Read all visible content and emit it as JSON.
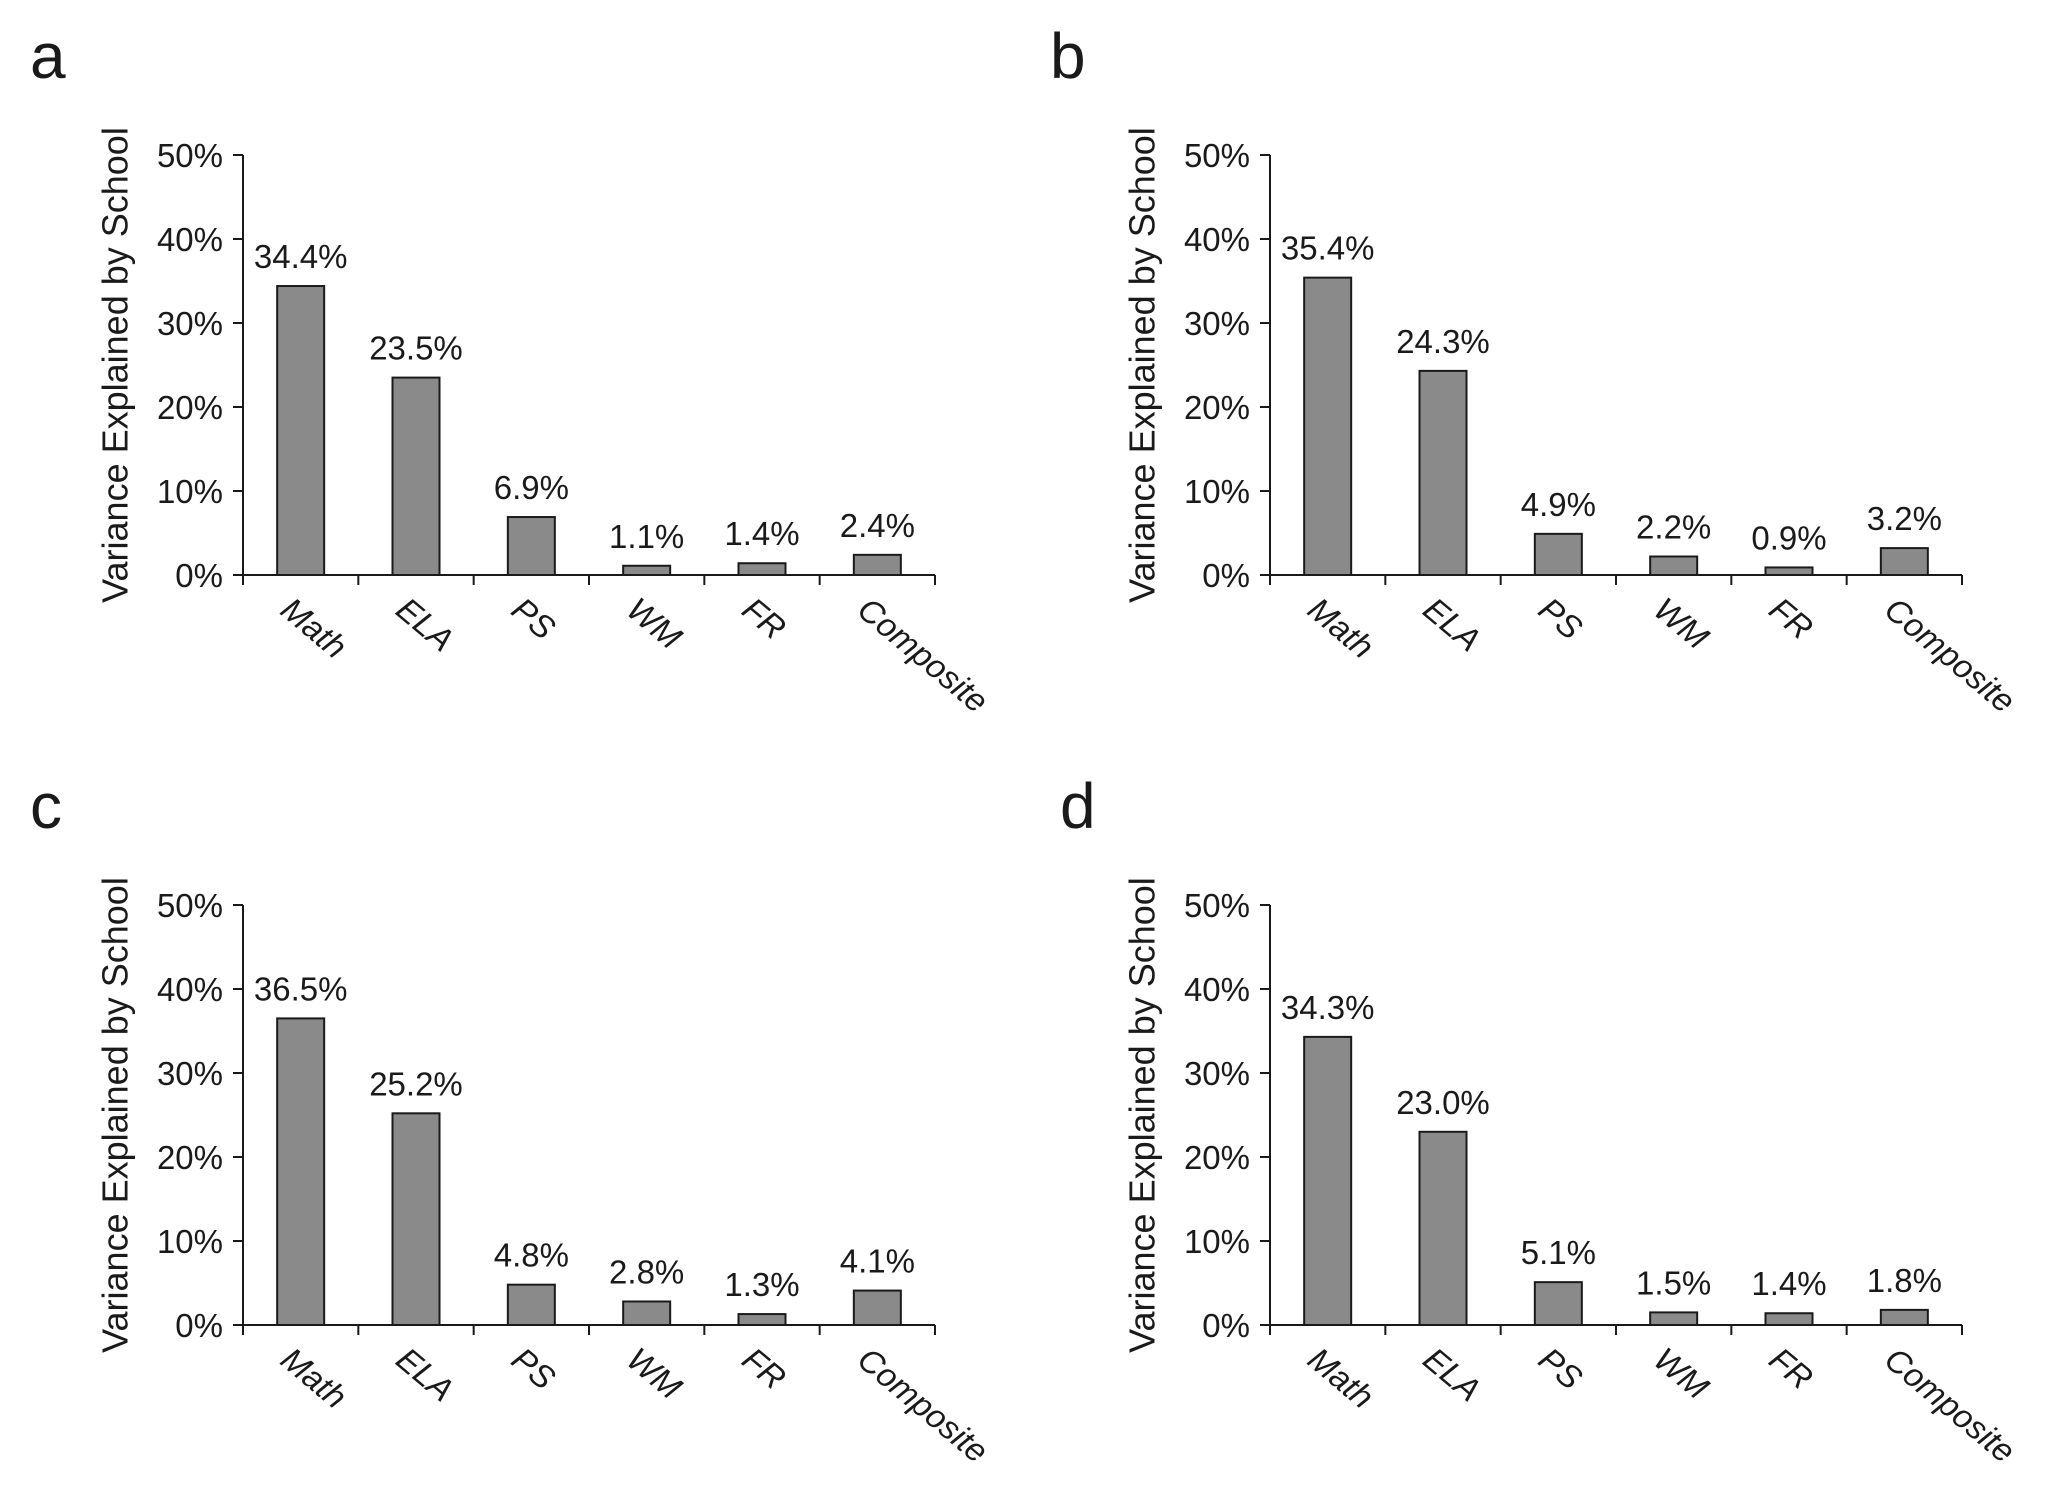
{
  "figure": {
    "colors": {
      "bar_fill": "#8a8a8a",
      "stroke": "#1a1a1a",
      "background": "#ffffff"
    }
  },
  "chart_data": [
    {
      "panel": "a",
      "type": "bar",
      "categories": [
        "Math",
        "ELA",
        "PS",
        "WM",
        "FR",
        "Composite"
      ],
      "values": [
        34.4,
        23.5,
        6.9,
        1.1,
        1.4,
        2.4
      ],
      "data_labels": [
        "34.4%",
        "23.5%",
        "6.9%",
        "1.1%",
        "1.4%",
        "2.4%"
      ],
      "ylabel": "Variance Explained by School",
      "ylim": [
        0,
        50
      ],
      "y_ticks": [
        "0%",
        "10%",
        "20%",
        "30%",
        "40%",
        "50%"
      ],
      "grid": false
    },
    {
      "panel": "b",
      "type": "bar",
      "categories": [
        "Math",
        "ELA",
        "PS",
        "WM",
        "FR",
        "Composite"
      ],
      "values": [
        35.4,
        24.3,
        4.9,
        2.2,
        0.9,
        3.2
      ],
      "data_labels": [
        "35.4%",
        "24.3%",
        "4.9%",
        "2.2%",
        "0.9%",
        "3.2%"
      ],
      "ylabel": "Variance Explained by School",
      "ylim": [
        0,
        50
      ],
      "y_ticks": [
        "0%",
        "10%",
        "20%",
        "30%",
        "40%",
        "50%"
      ],
      "grid": false
    },
    {
      "panel": "c",
      "type": "bar",
      "categories": [
        "Math",
        "ELA",
        "PS",
        "WM",
        "FR",
        "Composite"
      ],
      "values": [
        36.5,
        25.2,
        4.8,
        2.8,
        1.3,
        4.1
      ],
      "data_labels": [
        "36.5%",
        "25.2%",
        "4.8%",
        "2.8%",
        "1.3%",
        "4.1%"
      ],
      "ylabel": "Variance Explained by School",
      "ylim": [
        0,
        50
      ],
      "y_ticks": [
        "0%",
        "10%",
        "20%",
        "30%",
        "40%",
        "50%"
      ],
      "grid": false
    },
    {
      "panel": "d",
      "type": "bar",
      "categories": [
        "Math",
        "ELA",
        "PS",
        "WM",
        "FR",
        "Composite"
      ],
      "values": [
        34.3,
        23.0,
        5.1,
        1.5,
        1.4,
        1.8
      ],
      "data_labels": [
        "34.3%",
        "23.0%",
        "5.1%",
        "1.5%",
        "1.4%",
        "1.8%"
      ],
      "ylabel": "Variance Explained by School",
      "ylim": [
        0,
        50
      ],
      "y_ticks": [
        "0%",
        "10%",
        "20%",
        "30%",
        "40%",
        "50%"
      ],
      "grid": false
    }
  ]
}
